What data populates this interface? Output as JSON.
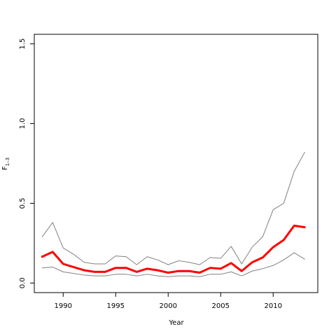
{
  "chart_data": {
    "type": "line",
    "title": "",
    "xlabel": "Year",
    "ylabel_main": "F",
    "ylabel_sub": "1–3",
    "xlim": [
      1987.25,
      2014.25
    ],
    "ylim": [
      -0.06,
      1.56
    ],
    "xticks": [
      1990,
      1995,
      2000,
      2005,
      2010
    ],
    "yticks": [
      0.0,
      0.5,
      1.0,
      1.5
    ],
    "ytick_labels": [
      "0.0",
      "0.5",
      "1.0",
      "1.5"
    ],
    "grid": false,
    "legend": "none",
    "x": [
      1988,
      1989,
      1990,
      1991,
      1992,
      1993,
      1994,
      1995,
      1996,
      1997,
      1998,
      1999,
      2000,
      2001,
      2002,
      2003,
      2004,
      2005,
      2006,
      2007,
      2008,
      2009,
      2010,
      2011,
      2012,
      2013
    ],
    "series": [
      {
        "role": "upper-bound",
        "color": "#808080",
        "width": 1,
        "values": [
          0.29,
          0.38,
          0.22,
          0.18,
          0.13,
          0.12,
          0.12,
          0.17,
          0.165,
          0.115,
          0.165,
          0.145,
          0.115,
          0.14,
          0.13,
          0.115,
          0.16,
          0.155,
          0.23,
          0.12,
          0.225,
          0.29,
          0.46,
          0.5,
          0.7,
          0.82
        ]
      },
      {
        "role": "estimate",
        "color": "#ff0000",
        "width": 3,
        "values": [
          0.165,
          0.195,
          0.12,
          0.1,
          0.08,
          0.07,
          0.07,
          0.095,
          0.095,
          0.07,
          0.09,
          0.08,
          0.065,
          0.075,
          0.075,
          0.065,
          0.095,
          0.09,
          0.125,
          0.075,
          0.13,
          0.16,
          0.225,
          0.27,
          0.36,
          0.35
        ]
      },
      {
        "role": "lower-bound",
        "color": "#808080",
        "width": 1,
        "values": [
          0.095,
          0.1,
          0.07,
          0.06,
          0.05,
          0.045,
          0.045,
          0.055,
          0.055,
          0.045,
          0.055,
          0.045,
          0.04,
          0.045,
          0.045,
          0.04,
          0.055,
          0.055,
          0.07,
          0.045,
          0.075,
          0.09,
          0.11,
          0.145,
          0.19,
          0.15
        ]
      }
    ]
  }
}
